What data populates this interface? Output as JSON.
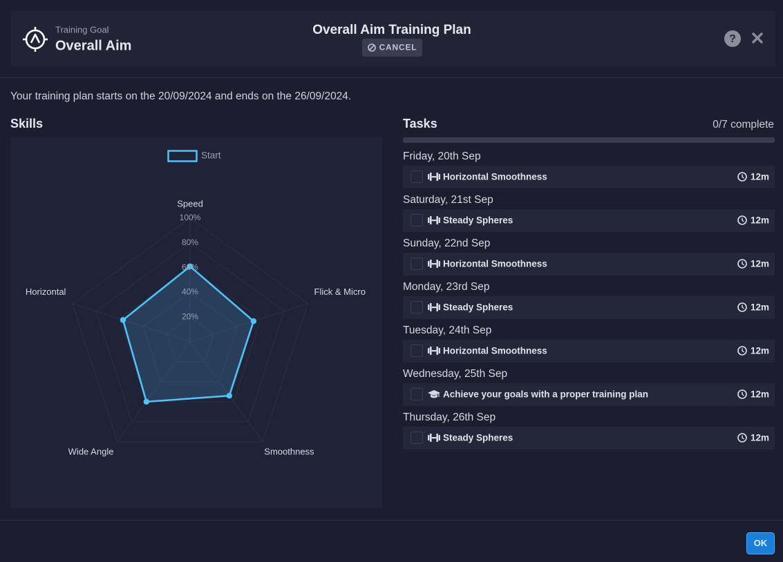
{
  "header": {
    "goal_label": "Training Goal",
    "goal": "Overall Aim",
    "title": "Overall Aim Training Plan",
    "cancel": "CANCEL"
  },
  "intro": "Your training plan starts on the 20/09/2024 and ends on the 26/09/2024.",
  "skills_heading": "Skills",
  "chart_data": {
    "type": "radar",
    "categories": [
      "Speed",
      "Flick & Micro",
      "Smoothness",
      "Wide Angle",
      "Horizontal"
    ],
    "series": [
      {
        "name": "Start",
        "color": "#4fc3f7",
        "values": [
          61,
          54,
          54,
          60,
          57
        ]
      }
    ],
    "ylim": [
      0,
      100
    ],
    "yticks": [
      {
        "value": 20,
        "label": "20%"
      },
      {
        "value": 40,
        "label": "40%"
      },
      {
        "value": 60,
        "label": "60%"
      },
      {
        "value": 80,
        "label": "80%"
      },
      {
        "value": 100,
        "label": "100%"
      }
    ],
    "grid": true
  },
  "tasks": {
    "heading": "Tasks",
    "progress": "0/7 complete",
    "days": [
      {
        "day": "Friday, 20th Sep",
        "icon": "dumbbell",
        "name": "Horizontal Smoothness",
        "duration": "12m"
      },
      {
        "day": "Saturday, 21st Sep",
        "icon": "dumbbell",
        "name": "Steady Spheres",
        "duration": "12m"
      },
      {
        "day": "Sunday, 22nd Sep",
        "icon": "dumbbell",
        "name": "Horizontal Smoothness",
        "duration": "12m"
      },
      {
        "day": "Monday, 23rd Sep",
        "icon": "dumbbell",
        "name": "Steady Spheres",
        "duration": "12m"
      },
      {
        "day": "Tuesday, 24th Sep",
        "icon": "dumbbell",
        "name": "Horizontal Smoothness",
        "duration": "12m"
      },
      {
        "day": "Wednesday, 25th Sep",
        "icon": "cap",
        "name": "Achieve your goals with a proper training plan",
        "duration": "12m"
      },
      {
        "day": "Thursday, 26th Sep",
        "icon": "dumbbell",
        "name": "Steady Spheres",
        "duration": "12m"
      }
    ]
  },
  "footer": {
    "ok": "OK"
  }
}
